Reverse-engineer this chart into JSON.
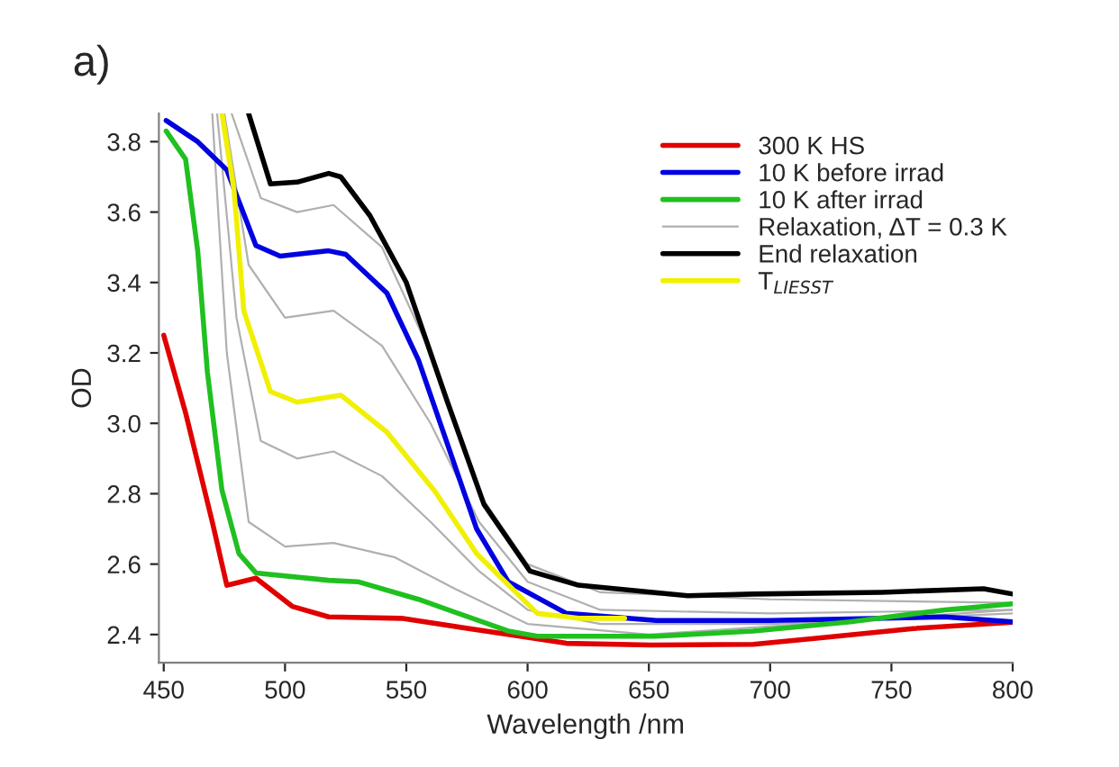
{
  "chart_data": {
    "type": "line",
    "xlabel": "Wavelength /nm",
    "ylabel": "OD",
    "annotations": [
      "a)"
    ],
    "xlim": [
      448,
      800
    ],
    "ylim": [
      2.32,
      3.88
    ],
    "xticks": [
      450,
      500,
      550,
      600,
      650,
      700,
      750,
      800
    ],
    "yticks": [
      {
        "value": 2.4,
        "label": "2.4"
      },
      {
        "value": 2.6,
        "label": "2.6"
      },
      {
        "value": 2.8,
        "label": "2.8"
      },
      {
        "value": 3.0,
        "label": "3.0"
      },
      {
        "value": 3.2,
        "label": "3.2"
      },
      {
        "value": 3.4,
        "label": "3.4"
      },
      {
        "value": 3.6,
        "label": "3.6"
      },
      {
        "value": 3.8,
        "label": "3.8"
      }
    ],
    "grid": false,
    "legend": "top right",
    "marker": "none",
    "line_style": "solid",
    "series": [
      {
        "color": "#b0b0b0",
        "x": [
          475,
          485,
          500,
          520,
          540,
          560,
          580,
          600,
          630,
          700,
          800
        ],
        "values": [
          3.88,
          3.45,
          3.3,
          3.32,
          3.22,
          3.0,
          2.72,
          2.55,
          2.47,
          2.46,
          2.47
        ]
      },
      {
        "color": "#b0b0b0",
        "x": [
          472,
          480,
          490,
          505,
          520,
          540,
          560,
          580,
          600,
          630,
          700,
          800
        ],
        "values": [
          3.88,
          3.3,
          2.95,
          2.9,
          2.92,
          2.85,
          2.72,
          2.58,
          2.47,
          2.43,
          2.43,
          2.46
        ]
      },
      {
        "color": "#b0b0b0",
        "x": [
          470,
          476,
          485,
          500,
          520,
          545,
          570,
          600,
          650,
          800
        ],
        "values": [
          3.88,
          3.2,
          2.72,
          2.65,
          2.66,
          2.62,
          2.53,
          2.43,
          2.4,
          2.47
        ]
      },
      {
        "name": "300 K HS",
        "color": "#e00000",
        "x": [
          450,
          459,
          470,
          476,
          488,
          503,
          518,
          548,
          592,
          616,
          651,
          693,
          720,
          759,
          800
        ],
        "values": [
          3.25,
          3.03,
          2.72,
          2.54,
          2.56,
          2.48,
          2.45,
          2.446,
          2.4,
          2.375,
          2.37,
          2.372,
          2.39,
          2.417,
          2.435
        ]
      },
      {
        "name": "10 K before irrad",
        "color": "#0000e0",
        "x": [
          451,
          464,
          476,
          488,
          498,
          518,
          525,
          542,
          555,
          567,
          579,
          592,
          616,
          653,
          700,
          772,
          800
        ],
        "values": [
          3.86,
          3.8,
          3.72,
          3.505,
          3.475,
          3.49,
          3.48,
          3.37,
          3.18,
          2.94,
          2.7,
          2.55,
          2.46,
          2.44,
          2.44,
          2.45,
          2.436
        ]
      },
      {
        "name": "10 K after irrad",
        "color": "#20c020",
        "x": [
          451,
          459,
          464,
          468,
          474,
          481,
          488,
          518,
          530,
          555,
          592,
          604,
          653,
          693,
          733,
          772,
          800
        ],
        "values": [
          3.83,
          3.75,
          3.49,
          3.145,
          2.81,
          2.63,
          2.575,
          2.554,
          2.55,
          2.5,
          2.41,
          2.395,
          2.395,
          2.41,
          2.436,
          2.47,
          2.487
        ]
      },
      {
        "name": "Relaxation, ΔT = 0.3 K",
        "color": "#b0b0b0",
        "x": [
          478,
          490,
          505,
          520,
          540,
          560,
          580,
          600,
          630,
          700,
          800
        ],
        "values": [
          3.88,
          3.64,
          3.6,
          3.62,
          3.5,
          3.2,
          2.8,
          2.6,
          2.52,
          2.5,
          2.49
        ]
      },
      {
        "name": "End relaxation",
        "color": "#000000",
        "x": [
          485,
          494,
          505,
          518,
          523,
          535,
          550,
          567,
          582,
          601,
          621,
          666,
          693,
          746,
          788,
          800
        ],
        "values": [
          3.88,
          3.68,
          3.685,
          3.71,
          3.7,
          3.59,
          3.4,
          3.06,
          2.77,
          2.58,
          2.54,
          2.51,
          2.515,
          2.52,
          2.53,
          2.515
        ]
      },
      {
        "name": "T$_{LIESST}$",
        "color": "#f0f000",
        "x": [
          474,
          479,
          483,
          494,
          505,
          523,
          542,
          562,
          579,
          604,
          621,
          640
        ],
        "values": [
          3.88,
          3.66,
          3.32,
          3.09,
          3.06,
          3.08,
          2.975,
          2.805,
          2.63,
          2.46,
          2.446,
          2.446
        ]
      }
    ]
  }
}
